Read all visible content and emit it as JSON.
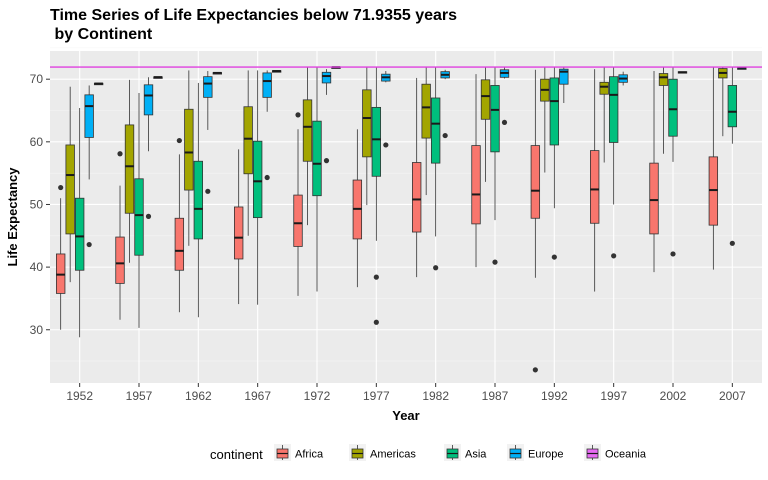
{
  "chart_data": {
    "type": "boxplot",
    "title": "Time Series of Life Expectancies below 71.9355 years\n by Continent",
    "xlabel": "Year",
    "ylabel": "Life Expectancy",
    "ylim": [
      21.5,
      74.5
    ],
    "yticks": [
      30,
      40,
      50,
      60,
      70
    ],
    "categories": [
      "1952",
      "1957",
      "1962",
      "1967",
      "1972",
      "1977",
      "1982",
      "1987",
      "1992",
      "1997",
      "2002",
      "2007"
    ],
    "reference_line": {
      "value": 71.9355,
      "color": "#e040e0"
    },
    "legend": {
      "title": "continent",
      "position": "bottom"
    },
    "grid": true,
    "series": [
      {
        "name": "Africa",
        "color": "#f8766d",
        "boxes": [
          {
            "min": 30.0,
            "q1": 35.8,
            "median": 38.8,
            "q3": 42.1,
            "max": 51.0,
            "outliers": [
              52.7
            ]
          },
          {
            "min": 31.6,
            "q1": 37.4,
            "median": 40.6,
            "q3": 44.8,
            "max": 53.0,
            "outliers": [
              58.1
            ]
          },
          {
            "min": 32.8,
            "q1": 39.5,
            "median": 42.6,
            "q3": 47.8,
            "max": 58.0,
            "outliers": [
              60.2
            ]
          },
          {
            "min": 34.1,
            "q1": 41.3,
            "median": 44.7,
            "q3": 49.6,
            "max": 58.8,
            "outliers": []
          },
          {
            "min": 35.4,
            "q1": 43.3,
            "median": 47.0,
            "q3": 51.5,
            "max": 62.0,
            "outliers": [
              64.3
            ]
          },
          {
            "min": 36.8,
            "q1": 44.5,
            "median": 49.3,
            "q3": 53.9,
            "max": 62.0,
            "outliers": []
          },
          {
            "min": 38.4,
            "q1": 45.6,
            "median": 50.8,
            "q3": 56.7,
            "max": 70.2,
            "outliers": []
          },
          {
            "min": 40.0,
            "q1": 46.9,
            "median": 51.6,
            "q3": 59.4,
            "max": 70.8,
            "outliers": []
          },
          {
            "min": 38.3,
            "q1": 47.8,
            "median": 52.2,
            "q3": 59.4,
            "max": 71.5,
            "outliers": [
              23.6
            ]
          },
          {
            "min": 36.1,
            "q1": 47.0,
            "median": 52.4,
            "q3": 58.6,
            "max": 71.6,
            "outliers": []
          },
          {
            "min": 39.2,
            "q1": 45.3,
            "median": 50.7,
            "q3": 56.6,
            "max": 71.3,
            "outliers": []
          },
          {
            "min": 39.6,
            "q1": 46.7,
            "median": 52.3,
            "q3": 57.6,
            "max": 71.9,
            "outliers": []
          }
        ]
      },
      {
        "name": "Americas",
        "color": "#a3a500",
        "boxes": [
          {
            "min": 37.6,
            "q1": 45.3,
            "median": 54.7,
            "q3": 59.5,
            "max": 68.8,
            "outliers": []
          },
          {
            "min": 40.7,
            "q1": 48.6,
            "median": 56.1,
            "q3": 62.7,
            "max": 69.9,
            "outliers": []
          },
          {
            "min": 43.4,
            "q1": 52.3,
            "median": 58.3,
            "q3": 65.2,
            "max": 71.4,
            "outliers": []
          },
          {
            "min": 45.0,
            "q1": 54.9,
            "median": 60.5,
            "q3": 65.6,
            "max": 71.4,
            "outliers": []
          },
          {
            "min": 46.7,
            "q1": 56.9,
            "median": 62.4,
            "q3": 66.7,
            "max": 71.9,
            "outliers": []
          },
          {
            "min": 49.9,
            "q1": 57.6,
            "median": 63.8,
            "q3": 68.3,
            "max": 71.9,
            "outliers": []
          },
          {
            "min": 51.5,
            "q1": 60.6,
            "median": 65.5,
            "q3": 69.2,
            "max": 71.9,
            "outliers": []
          },
          {
            "min": 53.6,
            "q1": 63.6,
            "median": 67.3,
            "q3": 69.9,
            "max": 71.9,
            "outliers": []
          },
          {
            "min": 55.1,
            "q1": 66.5,
            "median": 68.3,
            "q3": 70.0,
            "max": 71.9,
            "outliers": []
          },
          {
            "min": 56.7,
            "q1": 67.6,
            "median": 68.8,
            "q3": 69.5,
            "max": 71.9,
            "outliers": []
          },
          {
            "min": 58.1,
            "q1": 69.0,
            "median": 70.3,
            "q3": 70.9,
            "max": 71.9,
            "outliers": []
          },
          {
            "min": 60.9,
            "q1": 70.2,
            "median": 71.0,
            "q3": 71.7,
            "max": 71.9,
            "outliers": []
          }
        ]
      },
      {
        "name": "Asia",
        "color": "#00bf7d",
        "boxes": [
          {
            "min": 28.8,
            "q1": 39.5,
            "median": 44.9,
            "q3": 51.0,
            "max": 65.4,
            "outliers": []
          },
          {
            "min": 30.3,
            "q1": 41.9,
            "median": 48.3,
            "q3": 54.1,
            "max": 67.8,
            "outliers": []
          },
          {
            "min": 32.0,
            "q1": 44.5,
            "median": 49.3,
            "q3": 56.9,
            "max": 69.4,
            "outliers": []
          },
          {
            "min": 34.0,
            "q1": 47.9,
            "median": 53.7,
            "q3": 60.1,
            "max": 71.4,
            "outliers": []
          },
          {
            "min": 36.1,
            "q1": 51.4,
            "median": 56.5,
            "q3": 63.3,
            "max": 71.9,
            "outliers": []
          },
          {
            "min": 44.2,
            "q1": 54.5,
            "median": 60.4,
            "q3": 65.5,
            "max": 71.9,
            "outliers": [
              31.2,
              38.4
            ]
          },
          {
            "min": 44.9,
            "q1": 56.6,
            "median": 62.9,
            "q3": 67.0,
            "max": 71.9,
            "outliers": [
              39.9
            ]
          },
          {
            "min": 47.5,
            "q1": 58.4,
            "median": 65.1,
            "q3": 69.0,
            "max": 71.9,
            "outliers": [
              40.8
            ]
          },
          {
            "min": 49.4,
            "q1": 59.5,
            "median": 66.5,
            "q3": 70.2,
            "max": 71.9,
            "outliers": [
              41.6
            ]
          },
          {
            "min": 50.0,
            "q1": 59.9,
            "median": 67.5,
            "q3": 70.4,
            "max": 71.9,
            "outliers": [
              41.8
            ]
          },
          {
            "min": 56.8,
            "q1": 60.9,
            "median": 65.2,
            "q3": 70.0,
            "max": 71.9,
            "outliers": [
              42.1
            ]
          },
          {
            "min": 59.7,
            "q1": 62.4,
            "median": 64.8,
            "q3": 69.0,
            "max": 71.9,
            "outliers": [
              43.8
            ]
          }
        ]
      },
      {
        "name": "Europe",
        "color": "#00b0f6",
        "boxes": [
          {
            "min": 54.0,
            "q1": 60.7,
            "median": 65.7,
            "q3": 67.5,
            "max": 69.0,
            "outliers": [
              43.6
            ]
          },
          {
            "min": 58.5,
            "q1": 64.3,
            "median": 67.4,
            "q3": 69.1,
            "max": 70.3,
            "outliers": [
              48.1
            ]
          },
          {
            "min": 61.9,
            "q1": 67.1,
            "median": 69.3,
            "q3": 70.4,
            "max": 71.3,
            "outliers": [
              52.1
            ]
          },
          {
            "min": 64.8,
            "q1": 67.1,
            "median": 69.7,
            "q3": 71.0,
            "max": 71.4,
            "outliers": [
              54.3
            ]
          },
          {
            "min": 67.5,
            "q1": 69.4,
            "median": 70.5,
            "q3": 71.1,
            "max": 71.6,
            "outliers": [
              57.0
            ]
          },
          {
            "min": 69.5,
            "q1": 69.7,
            "median": 70.3,
            "q3": 70.8,
            "max": 71.3,
            "outliers": [
              59.5
            ]
          },
          {
            "min": 70.0,
            "q1": 70.2,
            "median": 70.7,
            "q3": 71.2,
            "max": 71.5,
            "outliers": [
              61.0
            ]
          },
          {
            "min": 70.1,
            "q1": 70.3,
            "median": 71.0,
            "q3": 71.5,
            "max": 71.9,
            "outliers": [
              63.1
            ]
          },
          {
            "min": 66.2,
            "q1": 69.2,
            "median": 71.2,
            "q3": 71.6,
            "max": 71.9,
            "outliers": []
          },
          {
            "min": 69.0,
            "q1": 69.5,
            "median": 70.1,
            "q3": 70.7,
            "max": 71.2,
            "outliers": []
          },
          {
            "min": 71.0,
            "q1": 71.0,
            "median": 71.1,
            "q3": 71.2,
            "max": 71.2,
            "outliers": []
          },
          {
            "min": 71.7,
            "q1": 71.7,
            "median": 71.8,
            "q3": 71.8,
            "max": 71.9,
            "outliers": []
          }
        ]
      },
      {
        "name": "Oceania",
        "color": "#e76bf3",
        "boxes": [
          {
            "min": 69.1,
            "q1": 69.2,
            "median": 69.3,
            "q3": 69.35,
            "max": 69.4,
            "outliers": []
          },
          {
            "min": 70.26,
            "q1": 70.3,
            "median": 70.33,
            "q3": 70.36,
            "max": 70.4,
            "outliers": []
          },
          {
            "min": 70.93,
            "q1": 70.96,
            "median": 71.0,
            "q3": 71.05,
            "max": 71.1,
            "outliers": []
          },
          {
            "min": 71.1,
            "q1": 71.2,
            "median": 71.3,
            "q3": 71.35,
            "max": 71.4,
            "outliers": []
          },
          {
            "min": 71.89,
            "q1": 71.9,
            "median": 71.92,
            "q3": 71.94,
            "max": 71.94,
            "outliers": []
          },
          null,
          null,
          null,
          null,
          null,
          null,
          null
        ]
      }
    ]
  }
}
